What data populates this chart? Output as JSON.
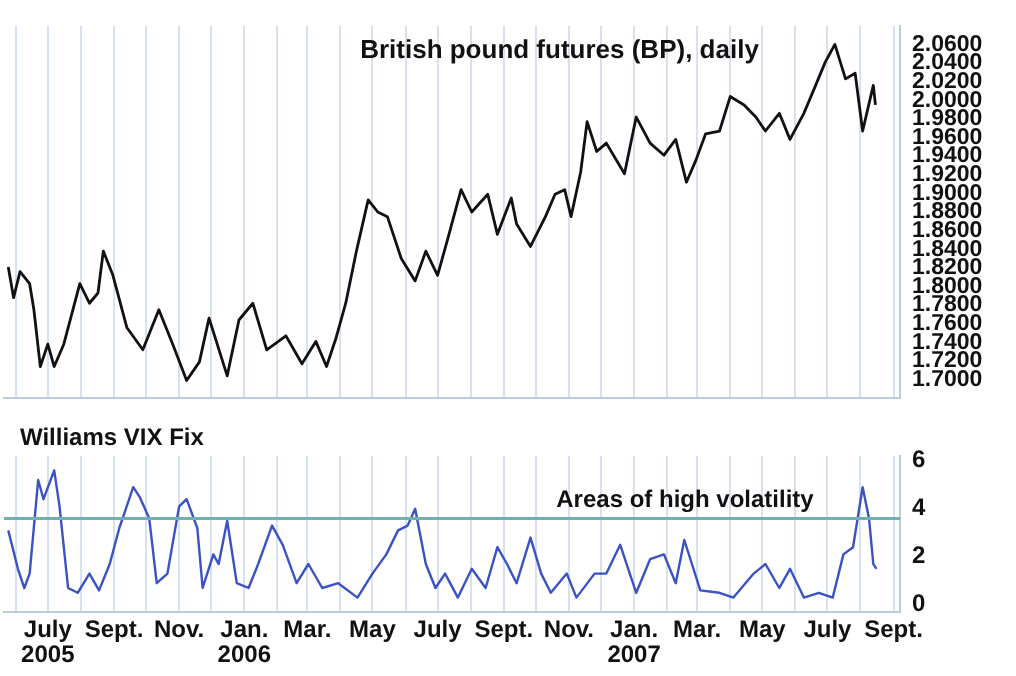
{
  "chart_data": [
    {
      "type": "line",
      "title": "British pound futures (BP), daily",
      "x": [
        "2005-05-25",
        "2005-05-30",
        "2005-06-05",
        "2005-06-14",
        "2005-06-18",
        "2005-06-24",
        "2005-07-01",
        "2005-07-07",
        "2005-07-16",
        "2005-07-31",
        "2005-08-09",
        "2005-08-17",
        "2005-08-22",
        "2005-08-31",
        "2005-09-13",
        "2005-09-28",
        "2005-10-13",
        "2005-10-26",
        "2005-11-08",
        "2005-11-20",
        "2005-11-29",
        "2005-12-16",
        "2005-12-27",
        "2006-01-09",
        "2006-01-22",
        "2006-02-09",
        "2006-02-24",
        "2006-03-09",
        "2006-03-19",
        "2006-03-28",
        "2006-04-06",
        "2006-04-16",
        "2006-04-27",
        "2006-05-06",
        "2006-05-15",
        "2006-05-28",
        "2006-06-10",
        "2006-06-20",
        "2006-07-01",
        "2006-07-10",
        "2006-07-23",
        "2006-08-02",
        "2006-08-17",
        "2006-08-26",
        "2006-09-08",
        "2006-09-13",
        "2006-09-26",
        "2006-10-10",
        "2006-10-19",
        "2006-10-28",
        "2006-11-03",
        "2006-11-12",
        "2006-11-18",
        "2006-11-27",
        "2006-12-06",
        "2006-12-23",
        "2007-01-03",
        "2007-01-16",
        "2007-01-29",
        "2007-02-09",
        "2007-02-19",
        "2007-02-28",
        "2007-03-09",
        "2007-03-22",
        "2007-04-01",
        "2007-04-14",
        "2007-04-25",
        "2007-05-04",
        "2007-05-17",
        "2007-05-27",
        "2007-06-09",
        "2007-06-20",
        "2007-06-29",
        "2007-07-08",
        "2007-07-18",
        "2007-07-27",
        "2007-08-03",
        "2007-08-13",
        "2007-08-15"
      ],
      "series": [
        {
          "color": "#111111",
          "values": [
            1.821,
            1.788,
            1.816,
            1.803,
            1.775,
            1.714,
            1.738,
            1.714,
            1.738,
            1.803,
            1.782,
            1.793,
            1.838,
            1.812,
            1.756,
            1.732,
            1.775,
            1.738,
            1.699,
            1.719,
            1.766,
            1.704,
            1.764,
            1.782,
            1.732,
            1.747,
            1.717,
            1.741,
            1.714,
            1.745,
            1.782,
            1.838,
            1.893,
            1.88,
            1.875,
            1.83,
            1.806,
            1.838,
            1.812,
            1.849,
            1.904,
            1.88,
            1.899,
            1.856,
            1.895,
            1.867,
            1.843,
            1.875,
            1.899,
            1.904,
            1.875,
            1.923,
            1.977,
            1.945,
            1.954,
            1.921,
            1.982,
            1.954,
            1.941,
            1.958,
            1.912,
            1.936,
            1.964,
            1.967,
            2.004,
            1.995,
            1.982,
            1.967,
            1.986,
            1.958,
            1.986,
            2.016,
            2.041,
            2.06,
            2.023,
            2.029,
            1.967,
            2.016,
            1.995
          ]
        }
      ],
      "xlim": [
        "2005-05-21",
        "2007-09-07"
      ],
      "xticks": [
        {
          "value": "2005-06-01",
          "label": null
        },
        {
          "value": "2005-07-01",
          "label": null
        },
        {
          "value": "2005-08-01",
          "label": null
        },
        {
          "value": "2005-09-01",
          "label": null
        },
        {
          "value": "2005-10-01",
          "label": null
        },
        {
          "value": "2005-11-01",
          "label": null
        },
        {
          "value": "2005-12-01",
          "label": null
        },
        {
          "value": "2006-01-01",
          "label": null
        },
        {
          "value": "2006-02-01",
          "label": null
        },
        {
          "value": "2006-03-01",
          "label": null
        },
        {
          "value": "2006-04-01",
          "label": null
        },
        {
          "value": "2006-05-01",
          "label": null
        },
        {
          "value": "2006-06-01",
          "label": null
        },
        {
          "value": "2006-07-01",
          "label": null
        },
        {
          "value": "2006-08-01",
          "label": null
        },
        {
          "value": "2006-09-01",
          "label": null
        },
        {
          "value": "2006-10-01",
          "label": null
        },
        {
          "value": "2006-11-01",
          "label": null
        },
        {
          "value": "2006-12-01",
          "label": null
        },
        {
          "value": "2007-01-01",
          "label": null
        },
        {
          "value": "2007-02-01",
          "label": null
        },
        {
          "value": "2007-03-01",
          "label": null
        },
        {
          "value": "2007-04-01",
          "label": null
        },
        {
          "value": "2007-05-01",
          "label": null
        },
        {
          "value": "2007-06-01",
          "label": null
        },
        {
          "value": "2007-07-01",
          "label": null
        },
        {
          "value": "2007-08-01",
          "label": null
        },
        {
          "value": "2007-09-01",
          "label": null
        }
      ],
      "ylim": [
        1.68,
        2.08
      ],
      "yticks": [
        {
          "value": 1.7,
          "label": "1.7000"
        },
        {
          "value": 1.72,
          "label": "1.7200"
        },
        {
          "value": 1.74,
          "label": "1.7400"
        },
        {
          "value": 1.76,
          "label": "1.7600"
        },
        {
          "value": 1.78,
          "label": "1.7800"
        },
        {
          "value": 1.8,
          "label": "1.8000"
        },
        {
          "value": 1.82,
          "label": "1.8200"
        },
        {
          "value": 1.84,
          "label": "1.8400"
        },
        {
          "value": 1.86,
          "label": "1.8600"
        },
        {
          "value": 1.88,
          "label": "1.8800"
        },
        {
          "value": 1.9,
          "label": "1.9000"
        },
        {
          "value": 1.92,
          "label": "1.9200"
        },
        {
          "value": 1.94,
          "label": "1.9400"
        },
        {
          "value": 1.96,
          "label": "1.9600"
        },
        {
          "value": 1.98,
          "label": "1.9800"
        },
        {
          "value": 2.0,
          "label": "2.0000"
        },
        {
          "value": 2.02,
          "label": "2.0200"
        },
        {
          "value": 2.04,
          "label": "2.0400"
        },
        {
          "value": 2.06,
          "label": "2.0600"
        }
      ],
      "tick_labels": "y",
      "grid": "x",
      "legend": false
    },
    {
      "type": "line",
      "title": "Williams VIX Fix",
      "x": [
        "2005-05-25",
        "2005-06-03",
        "2005-06-09",
        "2005-06-14",
        "2005-06-22",
        "2005-06-27",
        "2005-07-07",
        "2005-07-12",
        "2005-07-20",
        "2005-07-29",
        "2005-08-09",
        "2005-08-18",
        "2005-08-28",
        "2005-09-06",
        "2005-09-19",
        "2005-09-25",
        "2005-10-04",
        "2005-10-11",
        "2005-10-21",
        "2005-11-01",
        "2005-11-08",
        "2005-11-18",
        "2005-11-23",
        "2005-12-03",
        "2005-12-08",
        "2005-12-16",
        "2005-12-25",
        "2006-01-05",
        "2006-01-14",
        "2006-01-27",
        "2006-02-06",
        "2006-02-19",
        "2006-03-02",
        "2006-03-15",
        "2006-03-30",
        "2006-04-17",
        "2006-05-01",
        "2006-05-14",
        "2006-05-25",
        "2006-06-03",
        "2006-06-10",
        "2006-06-20",
        "2006-06-29",
        "2006-07-08",
        "2006-07-20",
        "2006-08-02",
        "2006-08-15",
        "2006-08-26",
        "2006-09-04",
        "2006-09-13",
        "2006-09-26",
        "2006-10-06",
        "2006-10-15",
        "2006-10-30",
        "2006-11-08",
        "2006-11-25",
        "2006-12-06",
        "2006-12-19",
        "2007-01-03",
        "2007-01-16",
        "2007-01-29",
        "2007-02-09",
        "2007-02-17",
        "2007-03-04",
        "2007-03-22",
        "2007-04-04",
        "2007-04-23",
        "2007-05-04",
        "2007-05-17",
        "2007-05-27",
        "2007-06-09",
        "2007-06-23",
        "2007-07-06",
        "2007-07-16",
        "2007-07-25",
        "2007-08-03",
        "2007-08-09",
        "2007-08-13",
        "2007-08-16"
      ],
      "series": [
        {
          "color": "#3b52c4",
          "values": [
            3.1,
            1.5,
            0.7,
            1.3,
            5.2,
            4.4,
            5.6,
            4.1,
            0.7,
            0.5,
            1.3,
            0.6,
            1.7,
            3.2,
            4.9,
            4.5,
            3.6,
            0.9,
            1.3,
            4.1,
            4.4,
            3.2,
            0.7,
            2.1,
            1.7,
            3.5,
            0.9,
            0.7,
            1.7,
            3.3,
            2.5,
            0.9,
            1.7,
            0.7,
            0.9,
            0.3,
            1.3,
            2.1,
            3.1,
            3.3,
            4.0,
            1.7,
            0.7,
            1.3,
            0.3,
            1.5,
            0.7,
            2.4,
            1.7,
            0.9,
            2.8,
            1.3,
            0.5,
            1.3,
            0.3,
            1.3,
            1.3,
            2.5,
            0.5,
            1.9,
            2.1,
            0.9,
            2.7,
            0.6,
            0.5,
            0.3,
            1.3,
            1.7,
            0.7,
            1.5,
            0.3,
            0.5,
            0.3,
            2.1,
            2.4,
            4.9,
            3.6,
            1.7,
            1.5
          ]
        }
      ],
      "xlim": [
        "2005-05-21",
        "2007-09-07"
      ],
      "xticks": [
        {
          "value": "2005-06-01",
          "label": null
        },
        {
          "value": "2005-07-01",
          "label": "July\n2005"
        },
        {
          "value": "2005-08-01",
          "label": null
        },
        {
          "value": "2005-09-01",
          "label": "Sept."
        },
        {
          "value": "2005-10-01",
          "label": null
        },
        {
          "value": "2005-11-01",
          "label": "Nov."
        },
        {
          "value": "2005-12-01",
          "label": null
        },
        {
          "value": "2006-01-01",
          "label": "Jan.\n2006"
        },
        {
          "value": "2006-02-01",
          "label": null
        },
        {
          "value": "2006-03-01",
          "label": "Mar."
        },
        {
          "value": "2006-04-01",
          "label": null
        },
        {
          "value": "2006-05-01",
          "label": "May"
        },
        {
          "value": "2006-06-01",
          "label": null
        },
        {
          "value": "2006-07-01",
          "label": "July"
        },
        {
          "value": "2006-08-01",
          "label": null
        },
        {
          "value": "2006-09-01",
          "label": "Sept."
        },
        {
          "value": "2006-10-01",
          "label": null
        },
        {
          "value": "2006-11-01",
          "label": "Nov."
        },
        {
          "value": "2006-12-01",
          "label": null
        },
        {
          "value": "2007-01-01",
          "label": "Jan.\n2007"
        },
        {
          "value": "2007-02-01",
          "label": null
        },
        {
          "value": "2007-03-01",
          "label": "Mar."
        },
        {
          "value": "2007-04-01",
          "label": null
        },
        {
          "value": "2007-05-01",
          "label": "May"
        },
        {
          "value": "2007-06-01",
          "label": null
        },
        {
          "value": "2007-07-01",
          "label": "July"
        },
        {
          "value": "2007-08-01",
          "label": null
        },
        {
          "value": "2007-09-01",
          "label": "Sept."
        }
      ],
      "ylim": [
        -0.3,
        6.2
      ],
      "yticks": [
        0,
        2,
        4,
        6
      ],
      "ref_lines": [
        {
          "axis": "y",
          "value": 3.6,
          "label": "Areas of high volatility",
          "color": "#6fb0b0"
        }
      ],
      "grid": "x",
      "legend": false
    }
  ]
}
